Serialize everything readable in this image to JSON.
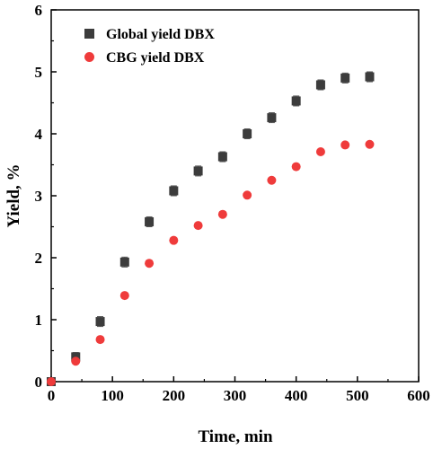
{
  "chart_data": {
    "type": "scatter",
    "xlabel": "Time, min",
    "ylabel": "Yield, %",
    "xlim": [
      0,
      600
    ],
    "ylim": [
      0,
      6
    ],
    "xticks": [
      "0",
      "100",
      "200",
      "300",
      "400",
      "500",
      "600"
    ],
    "yticks": [
      "0",
      "1",
      "2",
      "3",
      "4",
      "5",
      "6"
    ],
    "grid": false,
    "legend_position": "top-left",
    "series": [
      {
        "name": "Global yield DBX",
        "marker": "square",
        "color": "#3c3c3c",
        "x": [
          0,
          40,
          80,
          120,
          160,
          200,
          240,
          280,
          320,
          360,
          400,
          440,
          480,
          520
        ],
        "y": [
          0.0,
          0.4,
          0.97,
          1.93,
          2.58,
          3.08,
          3.4,
          3.63,
          4.0,
          4.26,
          4.53,
          4.79,
          4.9,
          4.92
        ],
        "err": [
          0,
          0.07,
          0.08,
          0.08,
          0.08,
          0.08,
          0.08,
          0.08,
          0.08,
          0.08,
          0.08,
          0.08,
          0.08,
          0.08
        ]
      },
      {
        "name": "CBG yield DBX",
        "marker": "circle",
        "color": "#ef3b3b",
        "x": [
          0,
          40,
          80,
          120,
          160,
          200,
          240,
          280,
          320,
          360,
          400,
          440,
          480,
          520
        ],
        "y": [
          0.0,
          0.33,
          0.68,
          1.39,
          1.91,
          2.28,
          2.52,
          2.7,
          3.01,
          3.25,
          3.47,
          3.71,
          3.82,
          3.83
        ],
        "err": [
          0,
          0,
          0,
          0,
          0,
          0,
          0,
          0,
          0,
          0,
          0,
          0,
          0,
          0
        ]
      }
    ]
  }
}
